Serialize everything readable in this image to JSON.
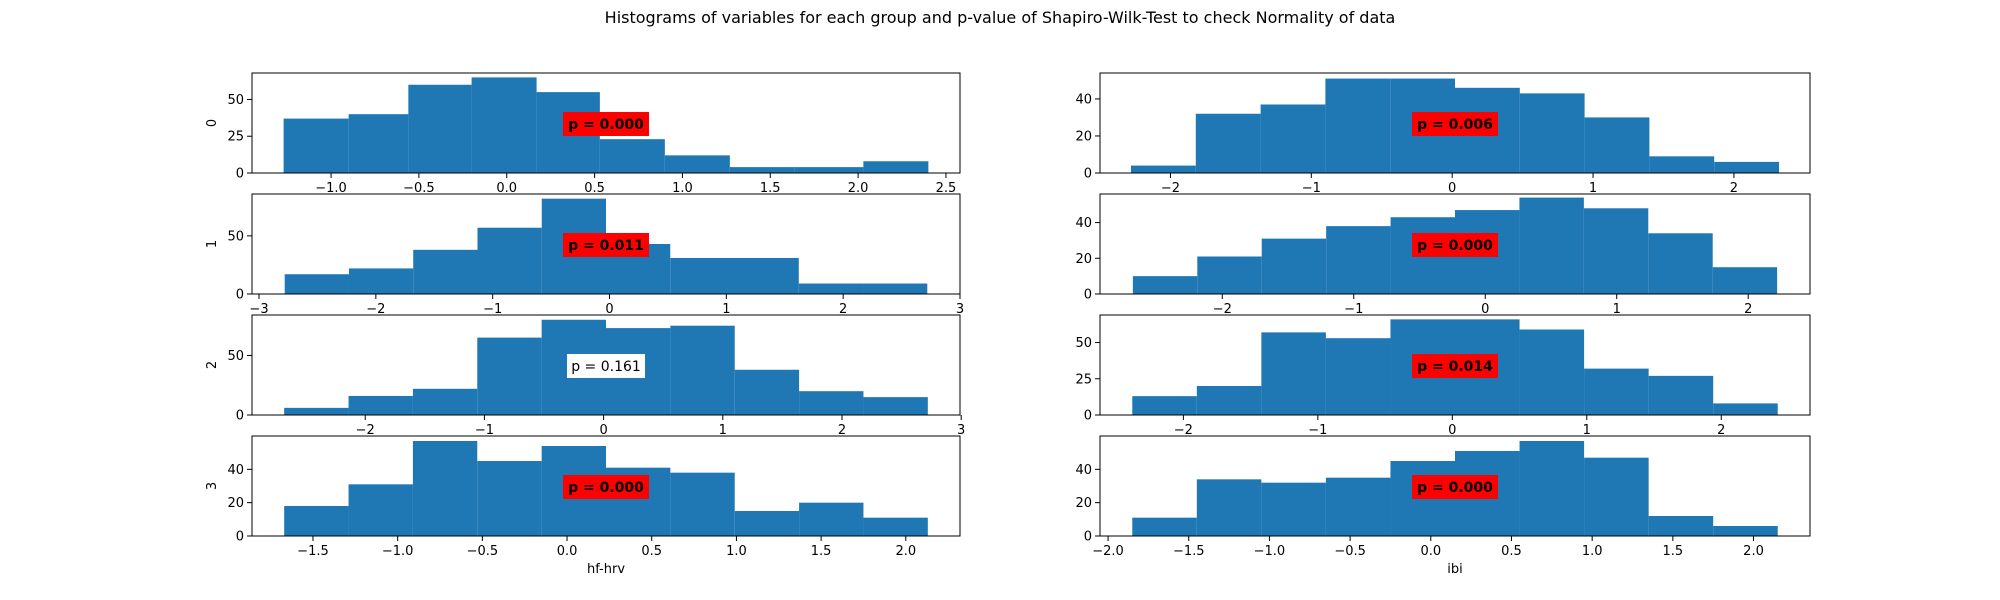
{
  "figure": {
    "title": "Histograms of variables for each group and p-value of Shapiro-Wilk-Test to check Normality of data",
    "bar_color": "#1f77b4",
    "significant_box_color": "#ff0000",
    "nonsignificant_box_color": "#ffffff"
  },
  "chart_data": [
    {
      "type": "bar",
      "group": "0",
      "variable": "hf-hrv",
      "row": 0,
      "col": 0,
      "ylabel": "0",
      "xlabel": "",
      "edges": [
        -1.27,
        -0.9,
        -0.56,
        -0.2,
        0.17,
        0.53,
        0.9,
        1.27,
        1.64,
        2.03,
        2.4
      ],
      "values": [
        37,
        40,
        60,
        65,
        55,
        23,
        12,
        4,
        4,
        8
      ],
      "xlim": [
        -1.45,
        2.58
      ],
      "ylim": [
        0,
        68
      ],
      "xticks": [
        -1.0,
        -0.5,
        0.0,
        0.5,
        1.0,
        1.5,
        2.0,
        2.5
      ],
      "yticks": [
        0,
        25,
        50
      ],
      "pvalue": "p = 0.000",
      "significant": true
    },
    {
      "type": "bar",
      "group": "0",
      "variable": "ibi",
      "row": 0,
      "col": 1,
      "ylabel": "",
      "xlabel": "",
      "edges": [
        -2.28,
        -1.82,
        -1.36,
        -0.9,
        -0.44,
        0.02,
        0.48,
        0.94,
        1.4,
        1.86,
        2.32
      ],
      "values": [
        4,
        32,
        37,
        51,
        51,
        46,
        43,
        30,
        9,
        6
      ],
      "xlim": [
        -2.5,
        2.54
      ],
      "ylim": [
        0,
        54
      ],
      "xticks": [
        -2,
        -1,
        0,
        1,
        2
      ],
      "yticks": [
        0,
        20,
        40
      ],
      "pvalue": "p = 0.006",
      "significant": true
    },
    {
      "type": "bar",
      "group": "1",
      "variable": "hf-hrv",
      "row": 1,
      "col": 0,
      "ylabel": "1",
      "xlabel": "",
      "edges": [
        -2.78,
        -2.23,
        -1.68,
        -1.13,
        -0.58,
        -0.03,
        0.52,
        1.07,
        1.62,
        2.17,
        2.72
      ],
      "values": [
        17,
        22,
        38,
        57,
        82,
        43,
        31,
        31,
        9,
        9
      ],
      "xlim": [
        -3.06,
        3.0
      ],
      "ylim": [
        0,
        86
      ],
      "xticks": [
        -3,
        -2,
        -1,
        0,
        1,
        2,
        3
      ],
      "yticks": [
        0,
        50
      ],
      "pvalue": "p = 0.011",
      "significant": true
    },
    {
      "type": "bar",
      "group": "1",
      "variable": "ibi",
      "row": 1,
      "col": 1,
      "ylabel": "",
      "xlabel": "",
      "edges": [
        -2.68,
        -2.19,
        -1.7,
        -1.21,
        -0.72,
        -0.23,
        0.26,
        0.75,
        1.24,
        1.73,
        2.22
      ],
      "values": [
        10,
        21,
        31,
        38,
        43,
        47,
        54,
        48,
        34,
        15
      ],
      "xlim": [
        -2.93,
        2.47
      ],
      "ylim": [
        0,
        56
      ],
      "xticks": [
        -2,
        -1,
        0,
        1,
        2
      ],
      "yticks": [
        0,
        20,
        40
      ],
      "pvalue": "p = 0.000",
      "significant": true
    },
    {
      "type": "bar",
      "group": "2",
      "variable": "hf-hrv",
      "row": 2,
      "col": 0,
      "ylabel": "2",
      "xlabel": "",
      "edges": [
        -2.68,
        -2.14,
        -1.6,
        -1.06,
        -0.52,
        0.02,
        0.56,
        1.1,
        1.64,
        2.18,
        2.72
      ],
      "values": [
        6,
        16,
        22,
        65,
        80,
        73,
        75,
        38,
        20,
        15
      ],
      "xlim": [
        -2.95,
        2.99
      ],
      "ylim": [
        0,
        84
      ],
      "xticks": [
        -2,
        -1,
        0,
        1,
        2,
        3
      ],
      "yticks": [
        0,
        50
      ],
      "pvalue": "p = 0.161",
      "significant": false
    },
    {
      "type": "bar",
      "group": "2",
      "variable": "ibi",
      "row": 2,
      "col": 1,
      "ylabel": "",
      "xlabel": "",
      "edges": [
        -2.38,
        -1.9,
        -1.42,
        -0.94,
        -0.46,
        0.02,
        0.5,
        0.98,
        1.46,
        1.94,
        2.42
      ],
      "values": [
        13,
        20,
        57,
        53,
        66,
        66,
        59,
        32,
        27,
        8
      ],
      "xlim": [
        -2.62,
        2.66
      ],
      "ylim": [
        0,
        69
      ],
      "xticks": [
        -2,
        -1,
        0,
        1,
        2
      ],
      "yticks": [
        0,
        25,
        50
      ],
      "pvalue": "p = 0.014",
      "significant": true
    },
    {
      "type": "bar",
      "group": "3",
      "variable": "hf-hrv",
      "row": 3,
      "col": 0,
      "ylabel": "3",
      "xlabel": "hf-hrv",
      "edges": [
        -1.67,
        -1.29,
        -0.91,
        -0.53,
        -0.15,
        0.23,
        0.61,
        0.99,
        1.37,
        1.75,
        2.13
      ],
      "values": [
        18,
        31,
        57,
        45,
        54,
        41,
        38,
        15,
        20,
        11
      ],
      "xlim": [
        -1.86,
        2.32
      ],
      "ylim": [
        0,
        60
      ],
      "xticks": [
        -1.5,
        -1.0,
        -0.5,
        0.0,
        0.5,
        1.0,
        1.5,
        2.0
      ],
      "yticks": [
        0,
        20,
        40
      ],
      "pvalue": "p = 0.000",
      "significant": true
    },
    {
      "type": "bar",
      "group": "3",
      "variable": "ibi",
      "row": 3,
      "col": 1,
      "ylabel": "",
      "xlabel": "ibi",
      "edges": [
        -1.85,
        -1.45,
        -1.05,
        -0.65,
        -0.25,
        0.15,
        0.55,
        0.95,
        1.35,
        1.75,
        2.15
      ],
      "values": [
        11,
        34,
        32,
        35,
        45,
        51,
        57,
        47,
        12,
        6
      ],
      "xlim": [
        -2.05,
        2.35
      ],
      "ylim": [
        0,
        60
      ],
      "xticks": [
        -2.0,
        -1.5,
        -1.0,
        -0.5,
        0.0,
        0.5,
        1.0,
        1.5,
        2.0
      ],
      "yticks": [
        0,
        20,
        40
      ],
      "pvalue": "p = 0.000",
      "significant": true
    }
  ]
}
